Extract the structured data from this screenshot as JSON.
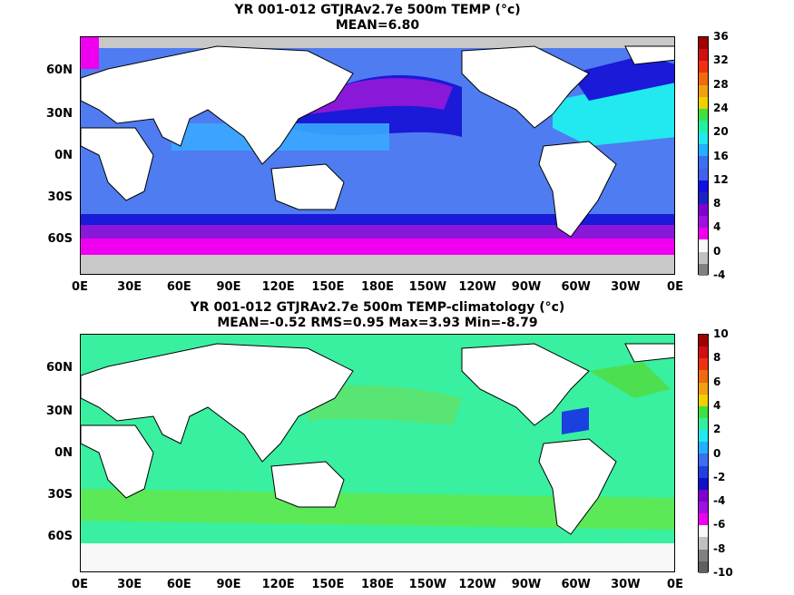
{
  "top": {
    "title": "YR 001-012 GTJRAv2.7e 500m TEMP (°c)",
    "subtitle": "MEAN=6.80",
    "colorbar_labels": [
      "36",
      "32",
      "28",
      "24",
      "20",
      "16",
      "12",
      "8",
      "4",
      "0",
      "-4"
    ],
    "colorbar_colors": [
      "#a00000",
      "#d01010",
      "#f03010",
      "#f06a10",
      "#f0a010",
      "#f0d000",
      "#40e040",
      "#20f0a0",
      "#20e8f0",
      "#20b0ff",
      "#3a70f0",
      "#4060f0",
      "#1010e0",
      "#2020c8",
      "#8000d0",
      "#a010e0",
      "#f000f0",
      "#f8f8f8",
      "#c0c0c0",
      "#808080"
    ]
  },
  "bottom": {
    "title": "YR 001-012 GTJRAv2.7e 500m TEMP-climatology (°c)",
    "subtitle": "MEAN=-0.52   RMS=0.95   Max=3.93   Min=-8.79",
    "colorbar_labels": [
      "10",
      "8",
      "6",
      "4",
      "2",
      "0",
      "-2",
      "-4",
      "-6",
      "-8",
      "-10"
    ],
    "colorbar_colors": [
      "#a00000",
      "#d01010",
      "#f03010",
      "#f06a10",
      "#f0a010",
      "#f0d000",
      "#40e040",
      "#30f0a0",
      "#20e8f0",
      "#20b0ff",
      "#3a70f0",
      "#2040e0",
      "#1010c8",
      "#8000d0",
      "#a010e0",
      "#f000f0",
      "#f8f8f8",
      "#c0c0c0",
      "#808080",
      "#606060"
    ]
  },
  "lat_labels": [
    "60N",
    "30N",
    "0N",
    "30S",
    "60S"
  ],
  "lon_labels": [
    "0E",
    "30E",
    "60E",
    "90E",
    "120E",
    "150E",
    "180E",
    "150W",
    "120W",
    "90W",
    "60W",
    "30W",
    "0E"
  ],
  "colors": {
    "land": "#ffffff",
    "ice": "#c8c8c8",
    "coast": "#000000"
  }
}
